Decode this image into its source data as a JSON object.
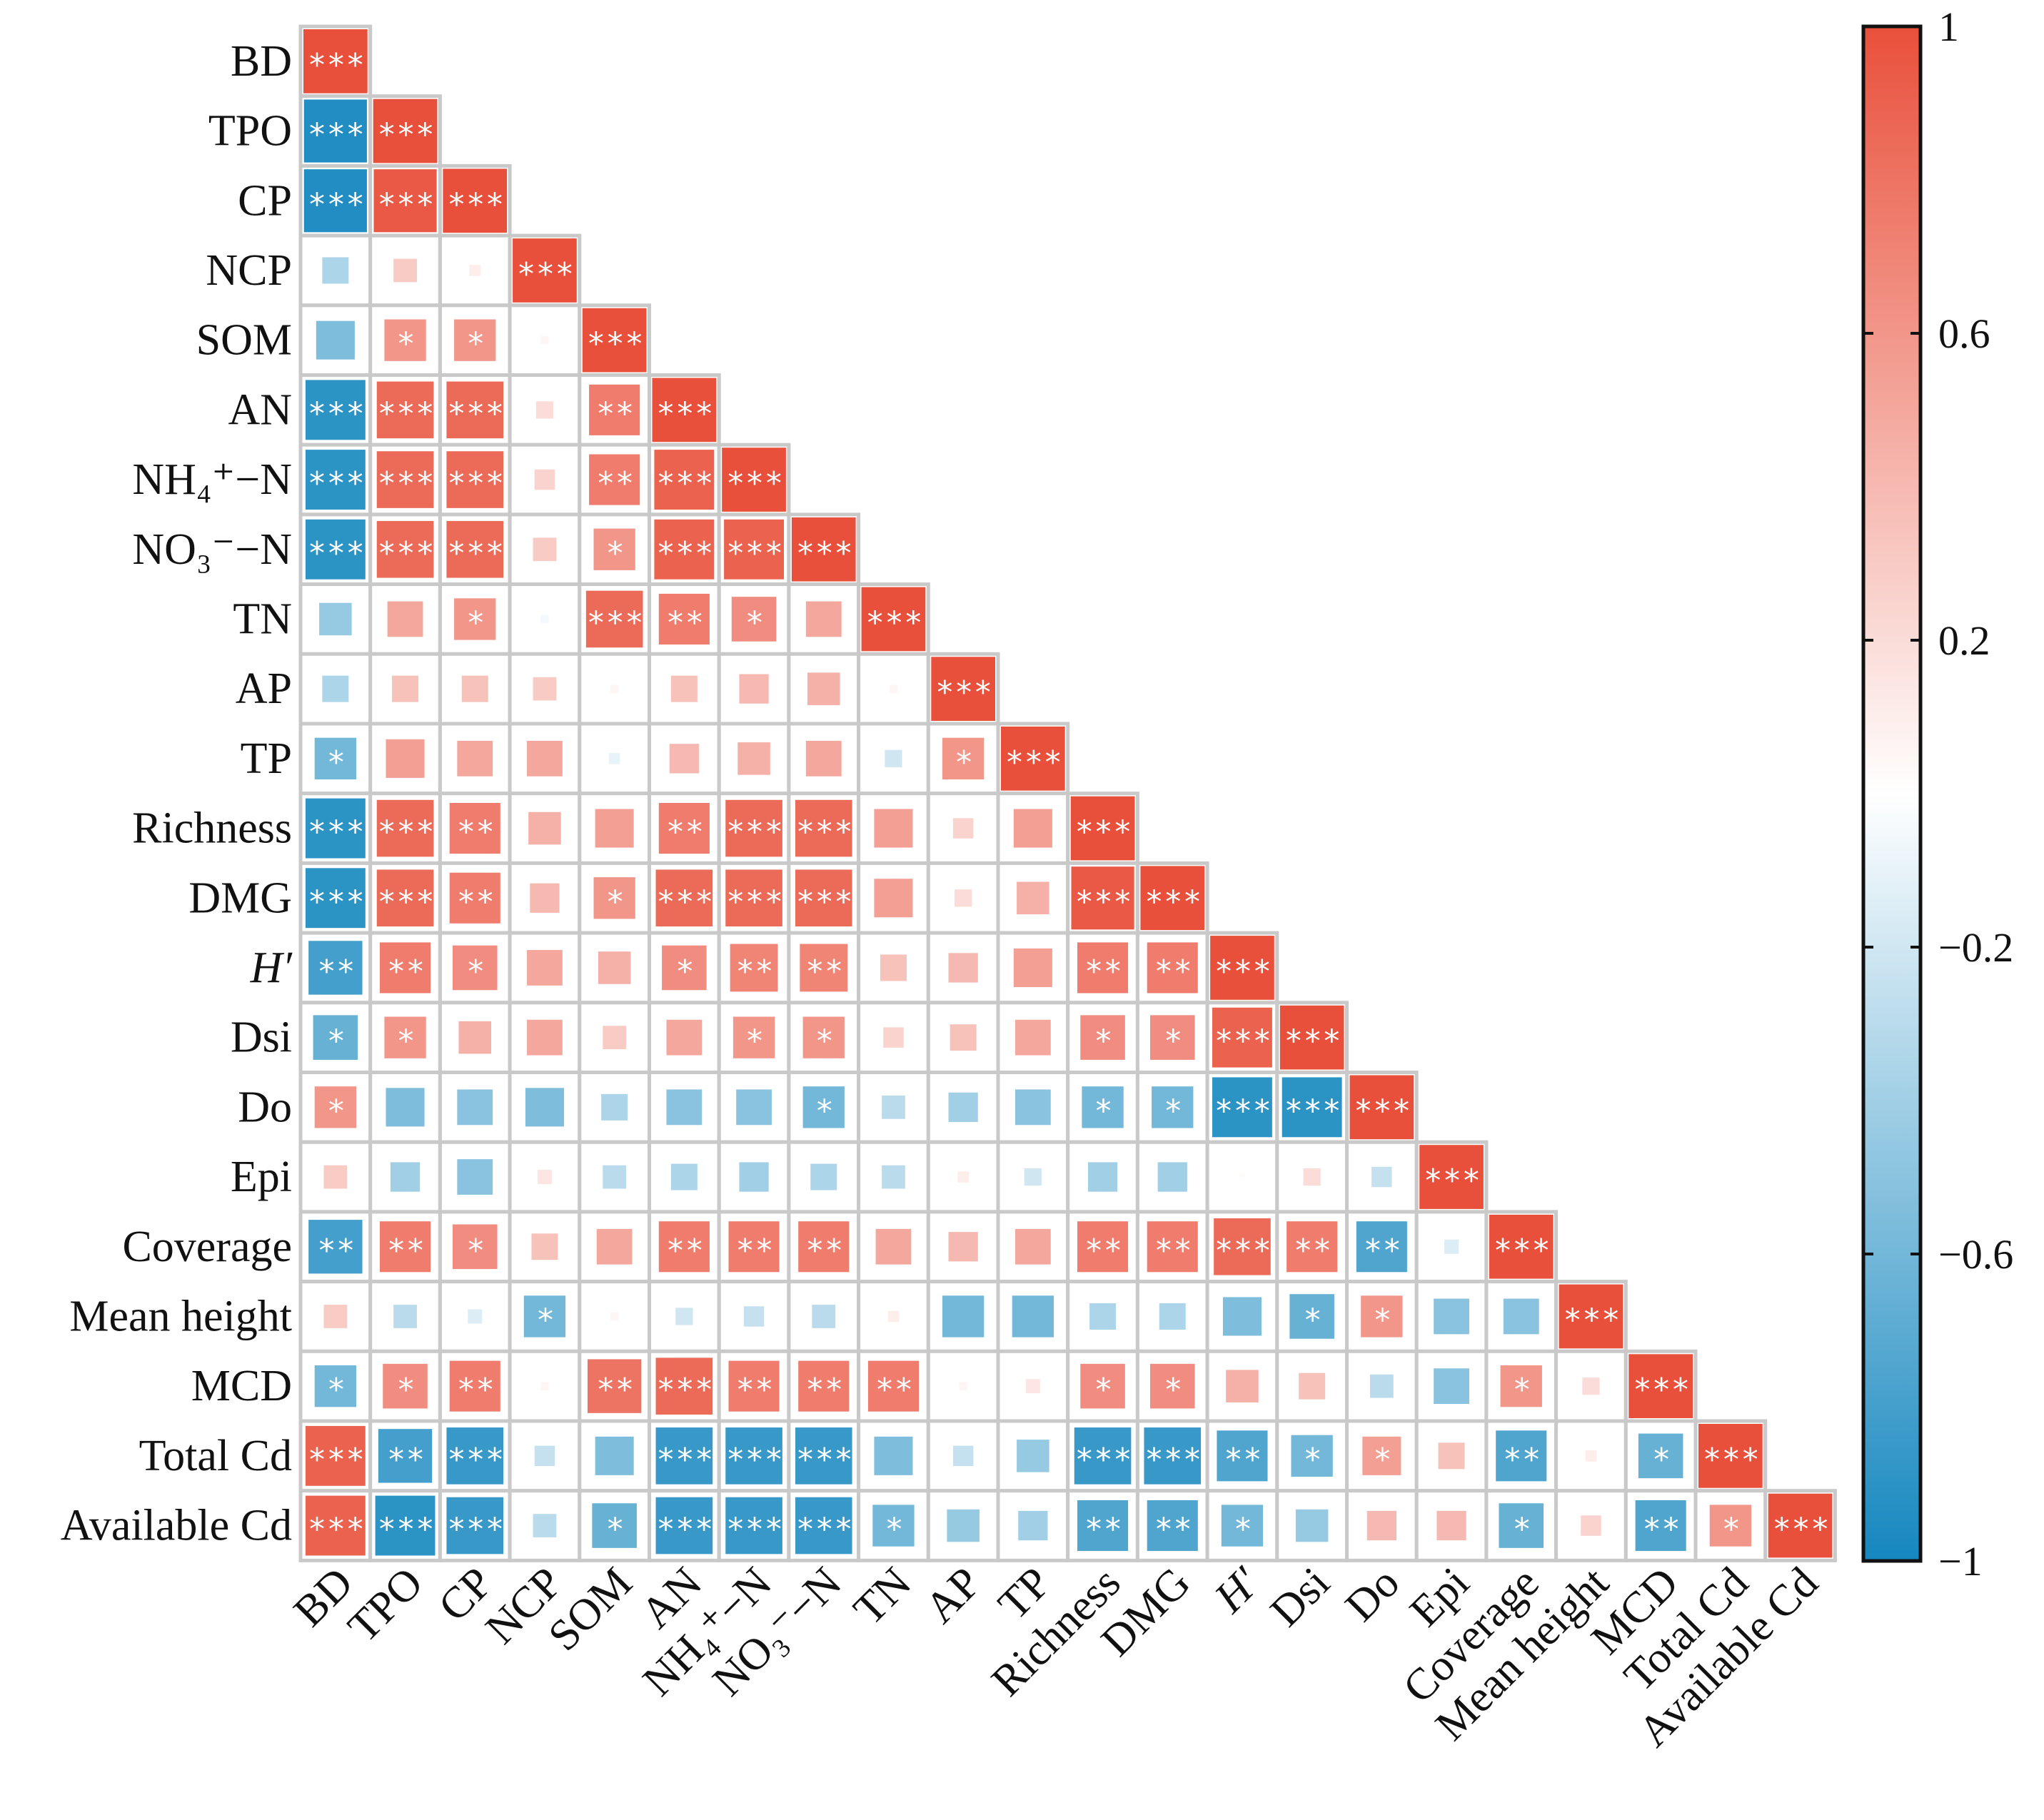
{
  "chart_data": {
    "type": "heatmap",
    "subtype": "correlation-lower-triangle",
    "variables": [
      "BD",
      "TPO",
      "CP",
      "NCP",
      "SOM",
      "AN",
      "NH₄⁺−N",
      "NO₃⁻−N",
      "TN",
      "AP",
      "TP",
      "Richness",
      "DMG",
      "H′",
      "Dsi",
      "Do",
      "Epi",
      "Coverage",
      "Mean height",
      "MCD",
      "Total Cd",
      "Available Cd"
    ],
    "italic_variables": [
      "H′"
    ],
    "values": [
      [
        1
      ],
      [
        -0.95,
        1
      ],
      [
        -0.95,
        0.95,
        1
      ],
      [
        -0.35,
        0.3,
        0.1,
        1
      ],
      [
        -0.55,
        0.6,
        0.6,
        0.05,
        1
      ],
      [
        -0.9,
        0.85,
        0.85,
        0.2,
        0.75,
        1
      ],
      [
        -0.9,
        0.85,
        0.85,
        0.25,
        0.75,
        0.9,
        1
      ],
      [
        -0.9,
        0.85,
        0.85,
        0.3,
        0.6,
        0.9,
        0.9,
        1
      ],
      [
        -0.45,
        0.5,
        0.6,
        -0.05,
        0.85,
        0.75,
        0.65,
        0.5,
        1
      ],
      [
        -0.35,
        0.35,
        0.35,
        0.3,
        0.05,
        0.35,
        0.4,
        0.45,
        0.05,
        1
      ],
      [
        -0.6,
        0.55,
        0.5,
        0.5,
        -0.1,
        0.4,
        0.45,
        0.5,
        -0.2,
        0.6,
        1
      ],
      [
        -0.9,
        0.85,
        0.75,
        0.45,
        0.55,
        0.75,
        0.85,
        0.85,
        0.55,
        0.25,
        0.55,
        1
      ],
      [
        -0.9,
        0.85,
        0.75,
        0.4,
        0.6,
        0.85,
        0.85,
        0.85,
        0.55,
        0.2,
        0.45,
        0.95,
        1
      ],
      [
        -0.8,
        0.75,
        0.65,
        0.5,
        0.45,
        0.65,
        0.7,
        0.7,
        0.35,
        0.4,
        0.55,
        0.75,
        0.75,
        1
      ],
      [
        -0.65,
        0.6,
        0.45,
        0.5,
        0.3,
        0.5,
        0.6,
        0.6,
        0.25,
        0.35,
        0.5,
        0.65,
        0.65,
        0.9,
        1
      ],
      [
        0.6,
        -0.55,
        -0.5,
        -0.55,
        -0.35,
        -0.5,
        -0.5,
        -0.6,
        -0.3,
        -0.4,
        -0.5,
        -0.6,
        -0.6,
        -0.9,
        -0.9,
        1
      ],
      [
        0.3,
        -0.4,
        -0.5,
        0.15,
        -0.3,
        -0.35,
        -0.4,
        -0.35,
        -0.3,
        0.1,
        -0.2,
        -0.4,
        -0.4,
        0.02,
        0.2,
        -0.25,
        1
      ],
      [
        -0.8,
        0.75,
        0.65,
        0.35,
        0.5,
        0.75,
        0.75,
        0.75,
        0.5,
        0.4,
        0.5,
        0.75,
        0.75,
        0.85,
        0.75,
        -0.75,
        -0.15,
        1
      ],
      [
        0.3,
        -0.3,
        -0.15,
        -0.6,
        0.05,
        -0.2,
        -0.25,
        -0.3,
        0.1,
        -0.6,
        -0.6,
        -0.35,
        -0.35,
        -0.55,
        -0.65,
        0.6,
        -0.5,
        -0.5,
        1
      ],
      [
        -0.6,
        0.65,
        0.75,
        0.05,
        0.8,
        0.85,
        0.75,
        0.75,
        0.75,
        0.05,
        0.15,
        0.65,
        0.65,
        0.45,
        0.35,
        -0.3,
        -0.5,
        0.6,
        0.2,
        1
      ],
      [
        0.9,
        -0.8,
        -0.85,
        -0.25,
        -0.55,
        -0.85,
        -0.85,
        -0.85,
        -0.55,
        -0.25,
        -0.45,
        -0.85,
        -0.85,
        -0.75,
        -0.6,
        0.55,
        0.35,
        -0.75,
        0.1,
        -0.65,
        1
      ],
      [
        0.9,
        -0.9,
        -0.85,
        -0.3,
        -0.65,
        -0.85,
        -0.85,
        -0.85,
        -0.6,
        -0.45,
        -0.4,
        -0.75,
        -0.75,
        -0.6,
        -0.45,
        0.4,
        0.4,
        -0.65,
        0.25,
        -0.75,
        0.6,
        1
      ]
    ],
    "significance": [
      [
        "***"
      ],
      [
        "***",
        "***"
      ],
      [
        "***",
        "***",
        "***"
      ],
      [
        "",
        "",
        "",
        "***"
      ],
      [
        "",
        "*",
        "*",
        "",
        "***"
      ],
      [
        "***",
        "***",
        "***",
        "",
        "**",
        "***"
      ],
      [
        "***",
        "***",
        "***",
        "",
        "**",
        "***",
        "***"
      ],
      [
        "***",
        "***",
        "***",
        "",
        "*",
        "***",
        "***",
        "***"
      ],
      [
        "",
        "",
        "*",
        "",
        "***",
        "**",
        "*",
        "",
        "***"
      ],
      [
        "",
        "",
        "",
        "",
        "",
        "",
        "",
        "",
        "",
        "***"
      ],
      [
        "*",
        "",
        "",
        "",
        "",
        "",
        "",
        "",
        "",
        "*",
        "***"
      ],
      [
        "***",
        "***",
        "**",
        "",
        "",
        "**",
        "***",
        "***",
        "",
        "",
        "",
        "***"
      ],
      [
        "***",
        "***",
        "**",
        "",
        "*",
        "***",
        "***",
        "***",
        "",
        "",
        "",
        "***",
        "***"
      ],
      [
        "**",
        "**",
        "*",
        "",
        "",
        "*",
        "**",
        "**",
        "",
        "",
        "",
        "**",
        "**",
        "***"
      ],
      [
        "*",
        "*",
        "",
        "",
        "",
        "",
        "*",
        "*",
        "",
        "",
        "",
        "*",
        "*",
        "***",
        "***"
      ],
      [
        "*",
        "",
        "",
        "",
        "",
        "",
        "",
        "*",
        "",
        "",
        "",
        "*",
        "*",
        "***",
        "***",
        "***"
      ],
      [
        "",
        "",
        "",
        "",
        "",
        "",
        "",
        "",
        "",
        "",
        "",
        "",
        "",
        "",
        "",
        "",
        "***"
      ],
      [
        "**",
        "**",
        "*",
        "",
        "",
        "**",
        "**",
        "**",
        "",
        "",
        "",
        "**",
        "**",
        "***",
        "**",
        "**",
        "",
        "***"
      ],
      [
        "",
        "",
        "",
        "*",
        "",
        "",
        "",
        "",
        "",
        "",
        "",
        "",
        "",
        "",
        "*",
        "*",
        "",
        "",
        "***"
      ],
      [
        "*",
        "*",
        "**",
        "",
        "**",
        "***",
        "**",
        "**",
        "**",
        "",
        "",
        "*",
        "*",
        "",
        "",
        "",
        "",
        "*",
        "",
        "***"
      ],
      [
        "***",
        "**",
        "***",
        "",
        "",
        "***",
        "***",
        "***",
        "",
        "",
        "",
        "***",
        "***",
        "**",
        "*",
        "*",
        "",
        "**",
        "",
        "*",
        "***"
      ],
      [
        "***",
        "***",
        "***",
        "",
        "*",
        "***",
        "***",
        "***",
        "*",
        "",
        "",
        "**",
        "**",
        "*",
        "",
        "",
        "",
        "*",
        "",
        "**",
        "*",
        "***"
      ]
    ],
    "colorbar": {
      "range": [
        -1,
        1
      ],
      "ticks": [
        1,
        0.6,
        0.2,
        -0.2,
        -0.6,
        -1
      ],
      "tick_labels": [
        "1",
        "0.6",
        "0.2",
        "−0.2",
        "−0.6",
        "−1"
      ],
      "low_color": "#1587bf",
      "mid_color": "#ffffff",
      "high_color": "#e9503b"
    },
    "legend_placement": "right"
  }
}
